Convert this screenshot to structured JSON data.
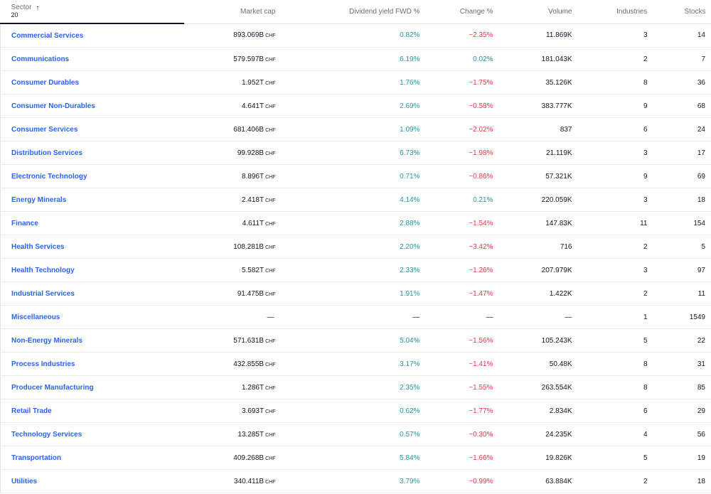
{
  "header": {
    "sector_label": "Sector",
    "sector_count": "20",
    "sort_icon": "arrow-up-icon",
    "market_cap": "Market cap",
    "dividend_yield": "Dividend yield FWD %",
    "change": "Change %",
    "volume": "Volume",
    "industries": "Industries",
    "stocks": "Stocks"
  },
  "currency": "CHF",
  "colors": {
    "link": "#2962ff",
    "positive": "#22989c",
    "negative": "#f23645"
  },
  "rows": [
    {
      "sector": "Commercial Services",
      "mcap": "893.069B",
      "cur": "CHF",
      "yield": "0.82%",
      "change": "−2.35%",
      "dir": "neg",
      "volume": "11.869K",
      "industries": "3",
      "stocks": "14"
    },
    {
      "sector": "Communications",
      "mcap": "579.597B",
      "cur": "CHF",
      "yield": "6.19%",
      "change": "0.02%",
      "dir": "pos",
      "volume": "181.043K",
      "industries": "2",
      "stocks": "7"
    },
    {
      "sector": "Consumer Durables",
      "mcap": "1.952T",
      "cur": "CHF",
      "yield": "1.76%",
      "change": "−1.75%",
      "dir": "neg",
      "volume": "35.126K",
      "industries": "8",
      "stocks": "36"
    },
    {
      "sector": "Consumer Non-Durables",
      "mcap": "4.641T",
      "cur": "CHF",
      "yield": "2.69%",
      "change": "−0.58%",
      "dir": "neg",
      "volume": "383.777K",
      "industries": "9",
      "stocks": "68"
    },
    {
      "sector": "Consumer Services",
      "mcap": "681.406B",
      "cur": "CHF",
      "yield": "1.09%",
      "change": "−2.02%",
      "dir": "neg",
      "volume": "837",
      "industries": "6",
      "stocks": "24"
    },
    {
      "sector": "Distribution Services",
      "mcap": "99.928B",
      "cur": "CHF",
      "yield": "6.73%",
      "change": "−1.98%",
      "dir": "neg",
      "volume": "21.119K",
      "industries": "3",
      "stocks": "17"
    },
    {
      "sector": "Electronic Technology",
      "mcap": "8.896T",
      "cur": "CHF",
      "yield": "0.71%",
      "change": "−0.86%",
      "dir": "neg",
      "volume": "57.321K",
      "industries": "9",
      "stocks": "69"
    },
    {
      "sector": "Energy Minerals",
      "mcap": "2.418T",
      "cur": "CHF",
      "yield": "4.14%",
      "change": "0.21%",
      "dir": "pos",
      "volume": "220.059K",
      "industries": "3",
      "stocks": "18"
    },
    {
      "sector": "Finance",
      "mcap": "4.611T",
      "cur": "CHF",
      "yield": "2.88%",
      "change": "−1.54%",
      "dir": "neg",
      "volume": "147.83K",
      "industries": "11",
      "stocks": "154"
    },
    {
      "sector": "Health Services",
      "mcap": "108.281B",
      "cur": "CHF",
      "yield": "2.20%",
      "change": "−3.42%",
      "dir": "neg",
      "volume": "716",
      "industries": "2",
      "stocks": "5"
    },
    {
      "sector": "Health Technology",
      "mcap": "5.582T",
      "cur": "CHF",
      "yield": "2.33%",
      "change": "−1.26%",
      "dir": "neg",
      "volume": "207.979K",
      "industries": "3",
      "stocks": "97"
    },
    {
      "sector": "Industrial Services",
      "mcap": "91.475B",
      "cur": "CHF",
      "yield": "1.91%",
      "change": "−1.47%",
      "dir": "neg",
      "volume": "1.422K",
      "industries": "2",
      "stocks": "11"
    },
    {
      "sector": "Miscellaneous",
      "mcap": "—",
      "cur": "",
      "yield": "—",
      "change": "—",
      "dir": "none",
      "volume": "—",
      "industries": "1",
      "stocks": "1549"
    },
    {
      "sector": "Non-Energy Minerals",
      "mcap": "571.631B",
      "cur": "CHF",
      "yield": "5.04%",
      "change": "−1.56%",
      "dir": "neg",
      "volume": "105.243K",
      "industries": "5",
      "stocks": "22"
    },
    {
      "sector": "Process Industries",
      "mcap": "432.855B",
      "cur": "CHF",
      "yield": "3.17%",
      "change": "−1.41%",
      "dir": "neg",
      "volume": "50.48K",
      "industries": "8",
      "stocks": "31"
    },
    {
      "sector": "Producer Manufacturing",
      "mcap": "1.286T",
      "cur": "CHF",
      "yield": "2.35%",
      "change": "−1.55%",
      "dir": "neg",
      "volume": "263.554K",
      "industries": "8",
      "stocks": "85"
    },
    {
      "sector": "Retail Trade",
      "mcap": "3.693T",
      "cur": "CHF",
      "yield": "0.62%",
      "change": "−1.77%",
      "dir": "neg",
      "volume": "2.834K",
      "industries": "6",
      "stocks": "29"
    },
    {
      "sector": "Technology Services",
      "mcap": "13.285T",
      "cur": "CHF",
      "yield": "0.57%",
      "change": "−0.30%",
      "dir": "neg",
      "volume": "24.235K",
      "industries": "4",
      "stocks": "56"
    },
    {
      "sector": "Transportation",
      "mcap": "409.268B",
      "cur": "CHF",
      "yield": "5.84%",
      "change": "−1.66%",
      "dir": "neg",
      "volume": "19.826K",
      "industries": "5",
      "stocks": "19"
    },
    {
      "sector": "Utilities",
      "mcap": "340.411B",
      "cur": "CHF",
      "yield": "3.79%",
      "change": "−0.99%",
      "dir": "neg",
      "volume": "63.884K",
      "industries": "2",
      "stocks": "18"
    }
  ]
}
